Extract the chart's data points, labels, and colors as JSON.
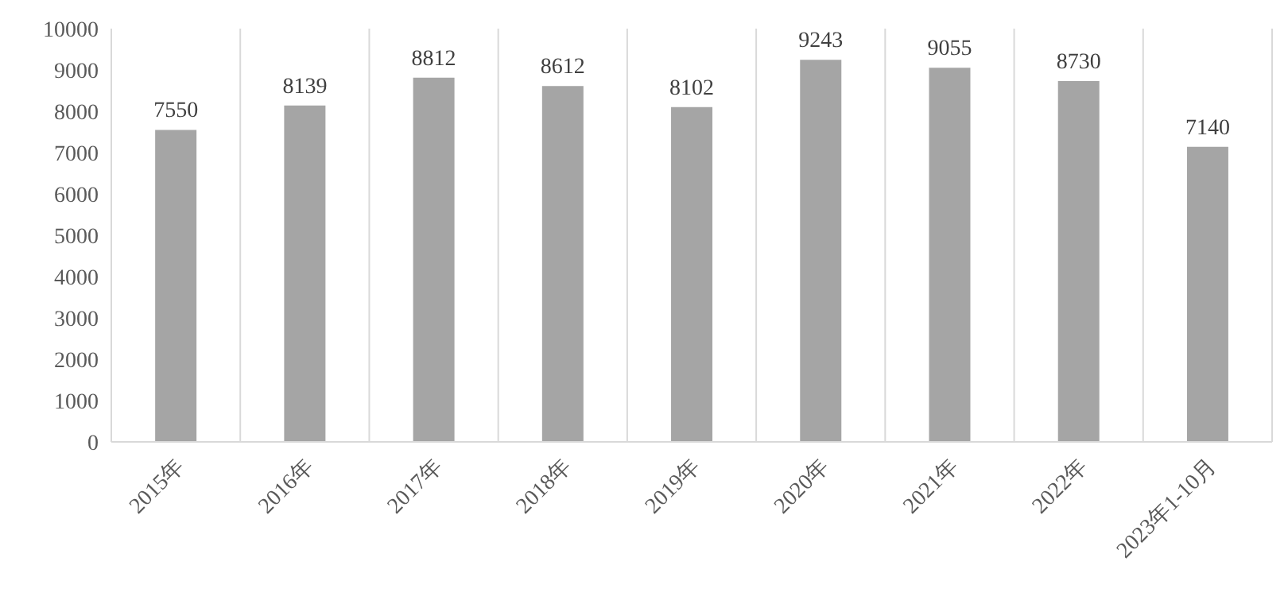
{
  "chart_data": {
    "type": "bar",
    "categories": [
      "2015年",
      "2016年",
      "2017年",
      "2018年",
      "2019年",
      "2020年",
      "2021年",
      "2022年",
      "2023年1-10月"
    ],
    "values": [
      7550,
      8139,
      8812,
      8612,
      8102,
      9243,
      9055,
      8730,
      7140
    ],
    "color": "#a5a5a5",
    "ylim": [
      0,
      10000
    ],
    "yticks": [
      0,
      1000,
      2000,
      3000,
      4000,
      5000,
      6000,
      7000,
      8000,
      9000,
      10000
    ],
    "grid": "x",
    "data_labels": true,
    "legend": false
  }
}
